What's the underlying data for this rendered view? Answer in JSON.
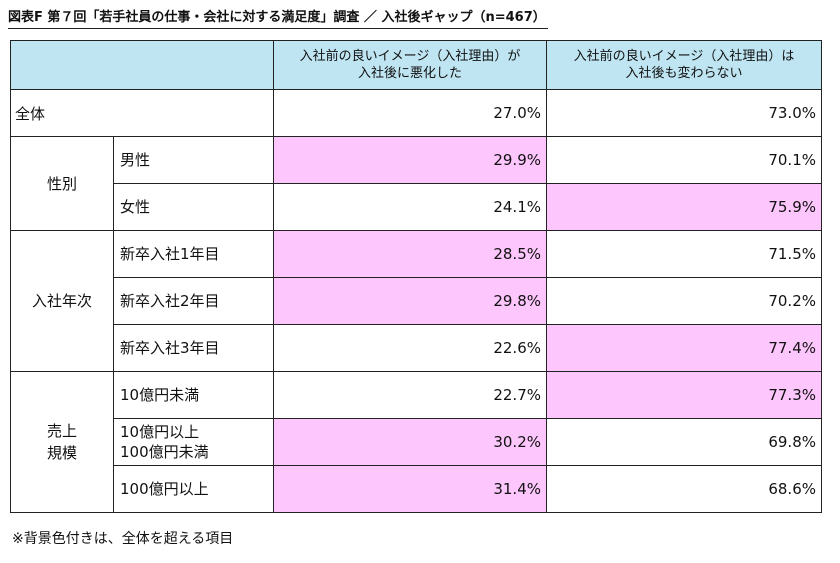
{
  "title": "図表F 第７回「若手社員の仕事・会社に対する満足度」調査 ／ 入社後ギャップ（n=467）",
  "headers": {
    "col1": "入社前の良いイメージ（入社理由）が\n入社後に悪化した",
    "col2": "入社前の良いイメージ（入社理由）は\n入社後も変わらない"
  },
  "total": {
    "label": "全体",
    "v1": "27.0%",
    "v2": "73.0%"
  },
  "groups": [
    {
      "label": "性別",
      "rows": [
        {
          "label": "男性",
          "v1": "29.9%",
          "v2": "70.1%",
          "hi1": true,
          "hi2": false
        },
        {
          "label": "女性",
          "v1": "24.1%",
          "v2": "75.9%",
          "hi1": false,
          "hi2": true
        }
      ]
    },
    {
      "label": "入社年次",
      "rows": [
        {
          "label": "新卒入社1年目",
          "v1": "28.5%",
          "v2": "71.5%",
          "hi1": true,
          "hi2": false
        },
        {
          "label": "新卒入社2年目",
          "v1": "29.8%",
          "v2": "70.2%",
          "hi1": true,
          "hi2": false
        },
        {
          "label": "新卒入社3年目",
          "v1": "22.6%",
          "v2": "77.4%",
          "hi1": false,
          "hi2": true
        }
      ]
    },
    {
      "label": "売上\n規模",
      "rows": [
        {
          "label": "10億円未満",
          "v1": "22.7%",
          "v2": "77.3%",
          "hi1": false,
          "hi2": true
        },
        {
          "label": "10億円以上\n100億円未満",
          "v1": "30.2%",
          "v2": "69.8%",
          "hi1": true,
          "hi2": false
        },
        {
          "label": "100億円以上",
          "v1": "31.4%",
          "v2": "68.6%",
          "hi1": true,
          "hi2": false
        }
      ]
    }
  ],
  "note": "※背景色付きは、全体を超える項目",
  "colors": {
    "header_bg": "#bfe5f2",
    "highlight": "#fdc6fd"
  }
}
